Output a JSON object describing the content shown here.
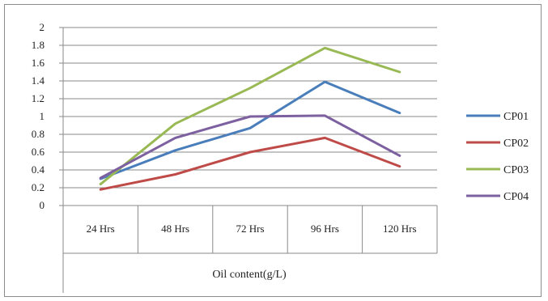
{
  "chart_data": {
    "type": "line",
    "categories": [
      "24 Hrs",
      "48 Hrs",
      "72 Hrs",
      "96 Hrs",
      "120 Hrs"
    ],
    "xlabel": "Oil content(g/L)",
    "ylabel": "",
    "ylim": [
      0,
      2
    ],
    "yticks": [
      "0",
      "0.2",
      "0.4",
      "0.6",
      "0.8",
      "1",
      "1.2",
      "1.4",
      "1.6",
      "1.8",
      "2"
    ],
    "grid": true,
    "legend_position": "right",
    "series": [
      {
        "name": "CP01",
        "color": "#4a7ebb",
        "values": [
          0.3,
          0.62,
          0.87,
          1.39,
          1.04
        ]
      },
      {
        "name": "CP02",
        "color": "#be4b48",
        "values": [
          0.18,
          0.35,
          0.6,
          0.76,
          0.44
        ]
      },
      {
        "name": "CP03",
        "color": "#98b954",
        "values": [
          0.24,
          0.92,
          1.32,
          1.77,
          1.5
        ]
      },
      {
        "name": "CP04",
        "color": "#7d60a0",
        "values": [
          0.31,
          0.76,
          1.0,
          1.01,
          0.56
        ]
      }
    ]
  }
}
